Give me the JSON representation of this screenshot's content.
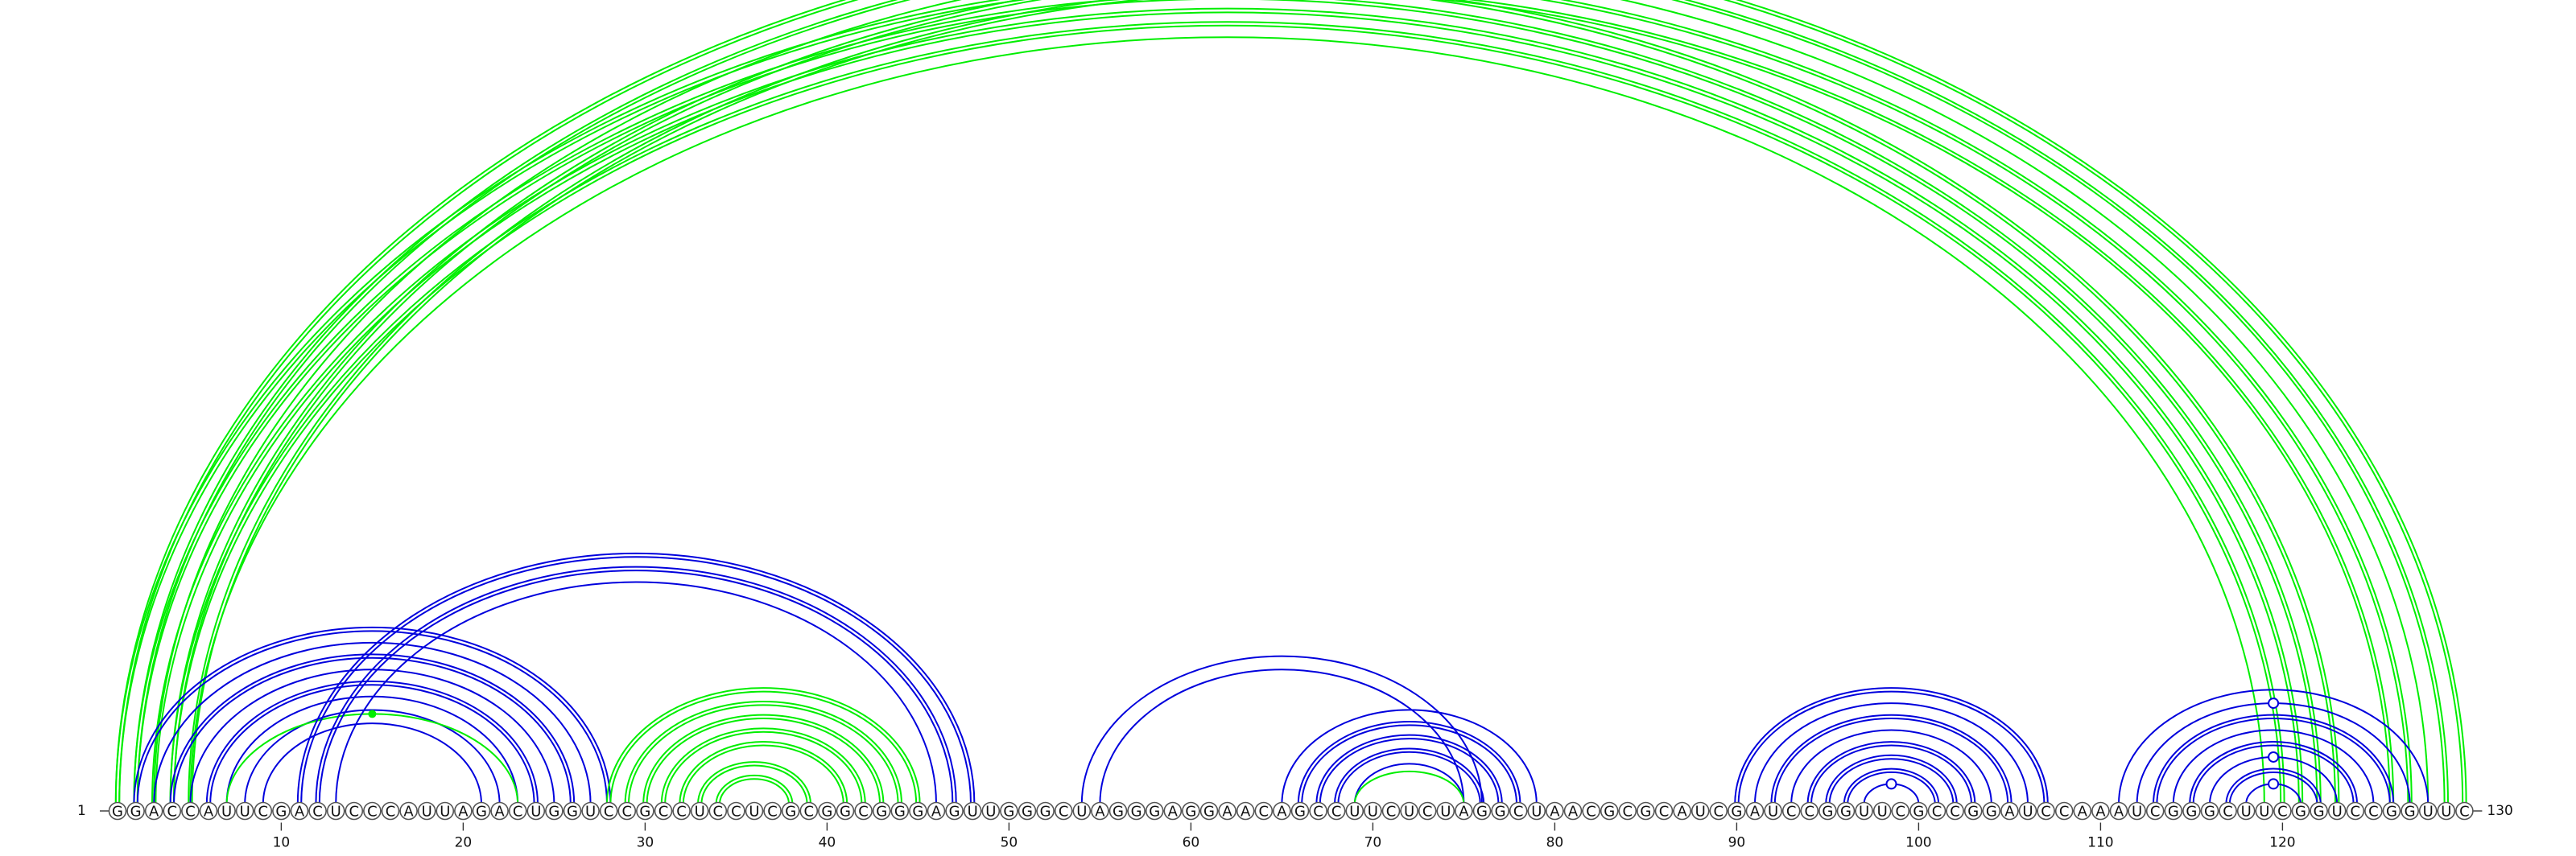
{
  "sequence": "GGACCAUUCGACUCCCAUUAGACUGGUCCGCCUCCUCGCGGCGGGAGUUGGGCUAGGGAGGAACAGCCUUCUCUAGGCUAACGCGCAUCGAUCCGGUUCGCCGGAUCCAAAUCGGGCUUCGGUCCGGUUC",
  "start_label": "1",
  "end_label": "130",
  "tick_positions": [
    10,
    20,
    30,
    40,
    50,
    60,
    70,
    80,
    90,
    100,
    110,
    120
  ],
  "colors": {
    "structure_a": "#0000dd",
    "structure_b": "#00ee00"
  },
  "arcs": [
    {
      "i": 1,
      "j": 130,
      "color": "green",
      "d": 0.74,
      "lines": 2
    },
    {
      "i": 2,
      "j": 129,
      "color": "green",
      "d": 0.74,
      "lines": 2
    },
    {
      "i": 3,
      "j": 128,
      "color": "green",
      "d": 0.74,
      "lines": 1,
      "marker": "circle"
    },
    {
      "i": 4,
      "j": 127,
      "color": "green",
      "d": 0.74,
      "lines": 2
    },
    {
      "i": 5,
      "j": 126,
      "color": "green",
      "d": 0.74,
      "lines": 2
    },
    {
      "i": 1,
      "j": 123,
      "color": "green",
      "d": 0.74,
      "lines": 2
    },
    {
      "i": 2,
      "j": 122,
      "color": "green",
      "d": 0.74,
      "lines": 2
    },
    {
      "i": 3,
      "j": 121,
      "color": "green",
      "d": 0.74,
      "lines": 2
    },
    {
      "i": 4,
      "j": 120,
      "color": "green",
      "d": 0.74,
      "lines": 2
    },
    {
      "i": 5,
      "j": 119,
      "color": "green",
      "d": 0.74,
      "lines": 1
    },
    {
      "i": 2,
      "j": 28,
      "color": "blue",
      "d": 0.74,
      "lines": 2
    },
    {
      "i": 3,
      "j": 27,
      "color": "blue",
      "d": 0.74,
      "lines": 1
    },
    {
      "i": 4,
      "j": 26,
      "color": "blue",
      "d": 0.74,
      "lines": 2
    },
    {
      "i": 5,
      "j": 25,
      "color": "blue",
      "d": 0.74,
      "lines": 1
    },
    {
      "i": 6,
      "j": 24,
      "color": "blue",
      "d": 0.74,
      "lines": 2
    },
    {
      "i": 7,
      "j": 23,
      "color": "blue",
      "d": 0.74,
      "lines": 1
    },
    {
      "i": 8,
      "j": 22,
      "color": "blue",
      "d": 0.74,
      "lines": 1
    },
    {
      "i": 9,
      "j": 21,
      "color": "blue",
      "d": 0.74,
      "lines": 1
    },
    {
      "i": 7,
      "j": 23,
      "color": "green",
      "d": 0.62,
      "lines": 1,
      "marker": "dot"
    },
    {
      "i": 11,
      "j": 48,
      "color": "blue",
      "d": 0.74,
      "lines": 2
    },
    {
      "i": 12,
      "j": 47,
      "color": "blue",
      "d": 0.74,
      "lines": 2
    },
    {
      "i": 13,
      "j": 46,
      "color": "blue",
      "d": 0.74,
      "lines": 1
    },
    {
      "i": 28,
      "j": 45,
      "color": "green",
      "d": 0.74,
      "lines": 2
    },
    {
      "i": 29,
      "j": 44,
      "color": "green",
      "d": 0.74,
      "lines": 2
    },
    {
      "i": 30,
      "j": 43,
      "color": "green",
      "d": 0.74,
      "lines": 2
    },
    {
      "i": 31,
      "j": 42,
      "color": "green",
      "d": 0.74,
      "lines": 2
    },
    {
      "i": 32,
      "j": 41,
      "color": "green",
      "d": 0.74,
      "lines": 2
    },
    {
      "i": 33,
      "j": 39,
      "color": "green",
      "d": 0.74,
      "lines": 2
    },
    {
      "i": 34,
      "j": 38,
      "color": "green",
      "d": 0.74,
      "lines": 2
    },
    {
      "i": 54,
      "j": 76,
      "color": "blue",
      "d": 0.74,
      "lines": 1
    },
    {
      "i": 55,
      "j": 75,
      "color": "blue",
      "d": 0.74,
      "lines": 1
    },
    {
      "i": 65,
      "j": 79,
      "color": "blue",
      "d": 0.74,
      "lines": 1
    },
    {
      "i": 66,
      "j": 78,
      "color": "blue",
      "d": 0.74,
      "lines": 2
    },
    {
      "i": 67,
      "j": 77,
      "color": "blue",
      "d": 0.74,
      "lines": 2
    },
    {
      "i": 68,
      "j": 76,
      "color": "blue",
      "d": 0.74,
      "lines": 2
    },
    {
      "i": 69,
      "j": 75,
      "color": "blue",
      "d": 0.74,
      "lines": 1
    },
    {
      "i": 69,
      "j": 75,
      "color": "green",
      "d": 0.6,
      "lines": 1
    },
    {
      "i": 90,
      "j": 107,
      "color": "blue",
      "d": 0.74,
      "lines": 2
    },
    {
      "i": 91,
      "j": 106,
      "color": "blue",
      "d": 0.74,
      "lines": 1
    },
    {
      "i": 92,
      "j": 105,
      "color": "blue",
      "d": 0.74,
      "lines": 2
    },
    {
      "i": 93,
      "j": 104,
      "color": "blue",
      "d": 0.74,
      "lines": 1
    },
    {
      "i": 94,
      "j": 103,
      "color": "blue",
      "d": 0.74,
      "lines": 2
    },
    {
      "i": 95,
      "j": 102,
      "color": "blue",
      "d": 0.74,
      "lines": 2
    },
    {
      "i": 96,
      "j": 101,
      "color": "blue",
      "d": 0.74,
      "lines": 2
    },
    {
      "i": 97,
      "j": 100,
      "color": "blue",
      "d": 0.74,
      "lines": 1,
      "marker": "circle"
    },
    {
      "i": 111,
      "j": 128,
      "color": "blue",
      "d": 0.74,
      "lines": 1
    },
    {
      "i": 112,
      "j": 127,
      "color": "blue",
      "d": 0.74,
      "lines": 1,
      "marker": "circle"
    },
    {
      "i": 113,
      "j": 126,
      "color": "blue",
      "d": 0.74,
      "lines": 2
    },
    {
      "i": 114,
      "j": 125,
      "color": "blue",
      "d": 0.74,
      "lines": 1
    },
    {
      "i": 115,
      "j": 124,
      "color": "blue",
      "d": 0.74,
      "lines": 2
    },
    {
      "i": 116,
      "j": 123,
      "color": "blue",
      "d": 0.74,
      "lines": 1,
      "marker": "circle"
    },
    {
      "i": 117,
      "j": 122,
      "color": "blue",
      "d": 0.74,
      "lines": 2
    },
    {
      "i": 118,
      "j": 121,
      "color": "blue",
      "d": 0.74,
      "lines": 1,
      "marker": "circle"
    }
  ]
}
